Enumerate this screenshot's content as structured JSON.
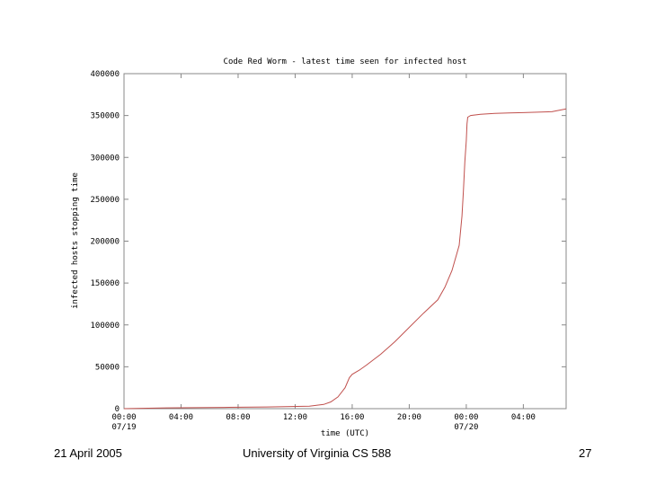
{
  "chart_data": {
    "type": "line",
    "title": "Code Red Worm - latest time seen for infected host",
    "xlabel": "time (UTC)",
    "ylabel": "infected hosts stopping time",
    "ylim": [
      0,
      400000
    ],
    "xlim_hours": [
      0,
      31
    ],
    "y_ticks": [
      {
        "value": 0,
        "label": "0"
      },
      {
        "value": 50000,
        "label": "50000"
      },
      {
        "value": 100000,
        "label": "100000"
      },
      {
        "value": 150000,
        "label": "150000"
      },
      {
        "value": 200000,
        "label": "200000"
      },
      {
        "value": 250000,
        "label": "250000"
      },
      {
        "value": 300000,
        "label": "300000"
      },
      {
        "value": 350000,
        "label": "350000"
      },
      {
        "value": 400000,
        "label": "400000"
      }
    ],
    "x_ticks": [
      {
        "hour": 0,
        "label": "00:00",
        "sublabel": "07/19"
      },
      {
        "hour": 4,
        "label": "04:00",
        "sublabel": ""
      },
      {
        "hour": 8,
        "label": "08:00",
        "sublabel": ""
      },
      {
        "hour": 12,
        "label": "12:00",
        "sublabel": ""
      },
      {
        "hour": 16,
        "label": "16:00",
        "sublabel": ""
      },
      {
        "hour": 20,
        "label": "20:00",
        "sublabel": ""
      },
      {
        "hour": 24,
        "label": "00:00",
        "sublabel": "07/20"
      },
      {
        "hour": 28,
        "label": "04:00",
        "sublabel": ""
      }
    ],
    "grid": false,
    "series": [
      {
        "color": "#c0504d",
        "x_hours": [
          0,
          3,
          7,
          10,
          13,
          14,
          14.5,
          15,
          15.5,
          15.8,
          16,
          16.5,
          17,
          18,
          19,
          20,
          21,
          22,
          22.5,
          23,
          23.5,
          23.7,
          23.8,
          23.9,
          24.0,
          24.05,
          24.1,
          24.3,
          25,
          26,
          27,
          28,
          29,
          30,
          31
        ],
        "values": [
          0,
          1000,
          1500,
          2000,
          3000,
          5000,
          8000,
          14000,
          25000,
          37000,
          41000,
          46000,
          52000,
          65000,
          80000,
          97000,
          114000,
          130000,
          145000,
          165000,
          195000,
          230000,
          260000,
          295000,
          320000,
          340000,
          348000,
          350000,
          351500,
          352500,
          353000,
          353500,
          354000,
          354500,
          358000
        ]
      }
    ]
  },
  "footer": {
    "left": "21 April 2005",
    "center": "University of Virginia CS 588",
    "right": "27"
  }
}
